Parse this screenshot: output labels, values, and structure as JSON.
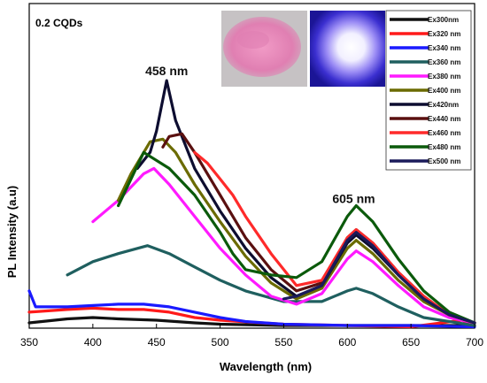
{
  "chart_data": {
    "type": "line",
    "title": "",
    "panel_label": "0.2 CQDs",
    "xlabel": "Wavelength (nm)",
    "ylabel": "PL Intensity (a.u)",
    "xlim": [
      350,
      700
    ],
    "ylim": [
      0,
      100
    ],
    "x_ticks": [
      350,
      400,
      450,
      500,
      550,
      600,
      650,
      700
    ],
    "y_ticks_shown": false,
    "grid": false,
    "legend_position": "top-right",
    "annotations": [
      {
        "text": "458 nm",
        "x": 458,
        "y": 93
      },
      {
        "text": "605 nm",
        "x": 605,
        "y": 45
      }
    ],
    "insets": [
      {
        "name": "pink-powder-photo",
        "color": "#e07fb2"
      },
      {
        "name": "uv-glow-photo",
        "color": "#3a3ad0"
      }
    ],
    "series": [
      {
        "name": "Ex300nm",
        "color": "#111111",
        "x": [
          350,
          380,
          400,
          420,
          450,
          480,
          500,
          550,
          600,
          650,
          700
        ],
        "y": [
          2,
          3.5,
          4,
          3.5,
          3,
          2,
          1.5,
          1,
          1,
          1,
          1
        ]
      },
      {
        "name": "Ex320 nm",
        "color": "#ff1a1a",
        "x": [
          350,
          380,
          400,
          420,
          440,
          460,
          480,
          500,
          550,
          600,
          650,
          690,
          700
        ],
        "y": [
          6,
          7,
          7.5,
          7,
          7,
          6,
          4,
          3,
          1.5,
          1,
          0.5,
          3,
          1
        ]
      },
      {
        "name": "Ex340 nm",
        "color": "#1a1aff",
        "x": [
          350,
          355,
          380,
          400,
          420,
          440,
          460,
          480,
          500,
          520,
          550,
          600,
          650,
          700
        ],
        "y": [
          14,
          8,
          8,
          8.5,
          9,
          9,
          8,
          6,
          4,
          2.5,
          1.5,
          1,
          1,
          0.5
        ]
      },
      {
        "name": "Ex360 nm",
        "color": "#1f5f5f",
        "x": [
          380,
          400,
          420,
          443,
          460,
          480,
          500,
          520,
          550,
          580,
          600,
          607,
          620,
          640,
          660,
          700
        ],
        "y": [
          20,
          25,
          28,
          31,
          28,
          23,
          18,
          14,
          10,
          10,
          14,
          15,
          13,
          8,
          4,
          1
        ]
      },
      {
        "name": "Ex380 nm",
        "color": "#ff1aff",
        "x": [
          400,
          420,
          440,
          448,
          460,
          480,
          500,
          520,
          540,
          560,
          580,
          600,
          607,
          620,
          640,
          660,
          680,
          700
        ],
        "y": [
          40,
          48,
          58,
          60,
          54,
          42,
          30,
          20,
          12,
          9,
          13,
          26,
          29,
          25,
          16,
          8,
          4,
          2
        ]
      },
      {
        "name": "Ex400 nm",
        "color": "#6b6b00",
        "x": [
          420,
          430,
          445,
          455,
          465,
          480,
          500,
          520,
          540,
          560,
          580,
          600,
          607,
          620,
          640,
          660,
          680,
          700
        ],
        "y": [
          48,
          58,
          70,
          71,
          66,
          54,
          40,
          27,
          17,
          11,
          15,
          30,
          33,
          28,
          18,
          10,
          5,
          2
        ]
      },
      {
        "name": "Ex420nm",
        "color": "#0d0d30",
        "x": [
          435,
          445,
          450,
          458,
          465,
          480,
          500,
          520,
          540,
          560,
          580,
          600,
          607,
          620,
          640,
          660,
          680,
          700
        ],
        "y": [
          60,
          66,
          74,
          93,
          78,
          60,
          44,
          30,
          19,
          12,
          16,
          32,
          35,
          30,
          20,
          11,
          5,
          2
        ]
      },
      {
        "name": "Ex440 nm",
        "color": "#5a1010",
        "x": [
          455,
          460,
          470,
          480,
          500,
          520,
          540,
          560,
          580,
          600,
          607,
          620,
          640,
          660,
          680,
          700
        ],
        "y": [
          68,
          72,
          73,
          66,
          50,
          34,
          22,
          14,
          17,
          34,
          37,
          32,
          21,
          12,
          5,
          2
        ]
      },
      {
        "name": "Ex460 nm",
        "color": "#ff2a2a",
        "x": [
          480,
          490,
          500,
          510,
          520,
          540,
          560,
          580,
          600,
          607,
          620,
          640,
          660,
          680,
          700
        ],
        "y": [
          66,
          62,
          56,
          50,
          42,
          28,
          16,
          18,
          34,
          37,
          32,
          21,
          12,
          5,
          2
        ]
      },
      {
        "name": "Ex480 nm",
        "color": "#0b5a0b",
        "x": [
          420,
          440,
          460,
          480,
          500,
          510,
          520,
          540,
          560,
          580,
          600,
          607,
          620,
          640,
          660,
          680,
          700
        ],
        "y": [
          46,
          66,
          60,
          50,
          36,
          28,
          22,
          20,
          19,
          25,
          42,
          46,
          40,
          26,
          14,
          6,
          2
        ]
      },
      {
        "name": "Ex500 nm",
        "color": "#1a1a5a",
        "x": [
          550,
          560,
          580,
          600,
          607,
          620,
          640,
          660,
          680,
          700
        ],
        "y": [
          11,
          12,
          16,
          33,
          36,
          31,
          20,
          11,
          5,
          2
        ]
      }
    ]
  }
}
